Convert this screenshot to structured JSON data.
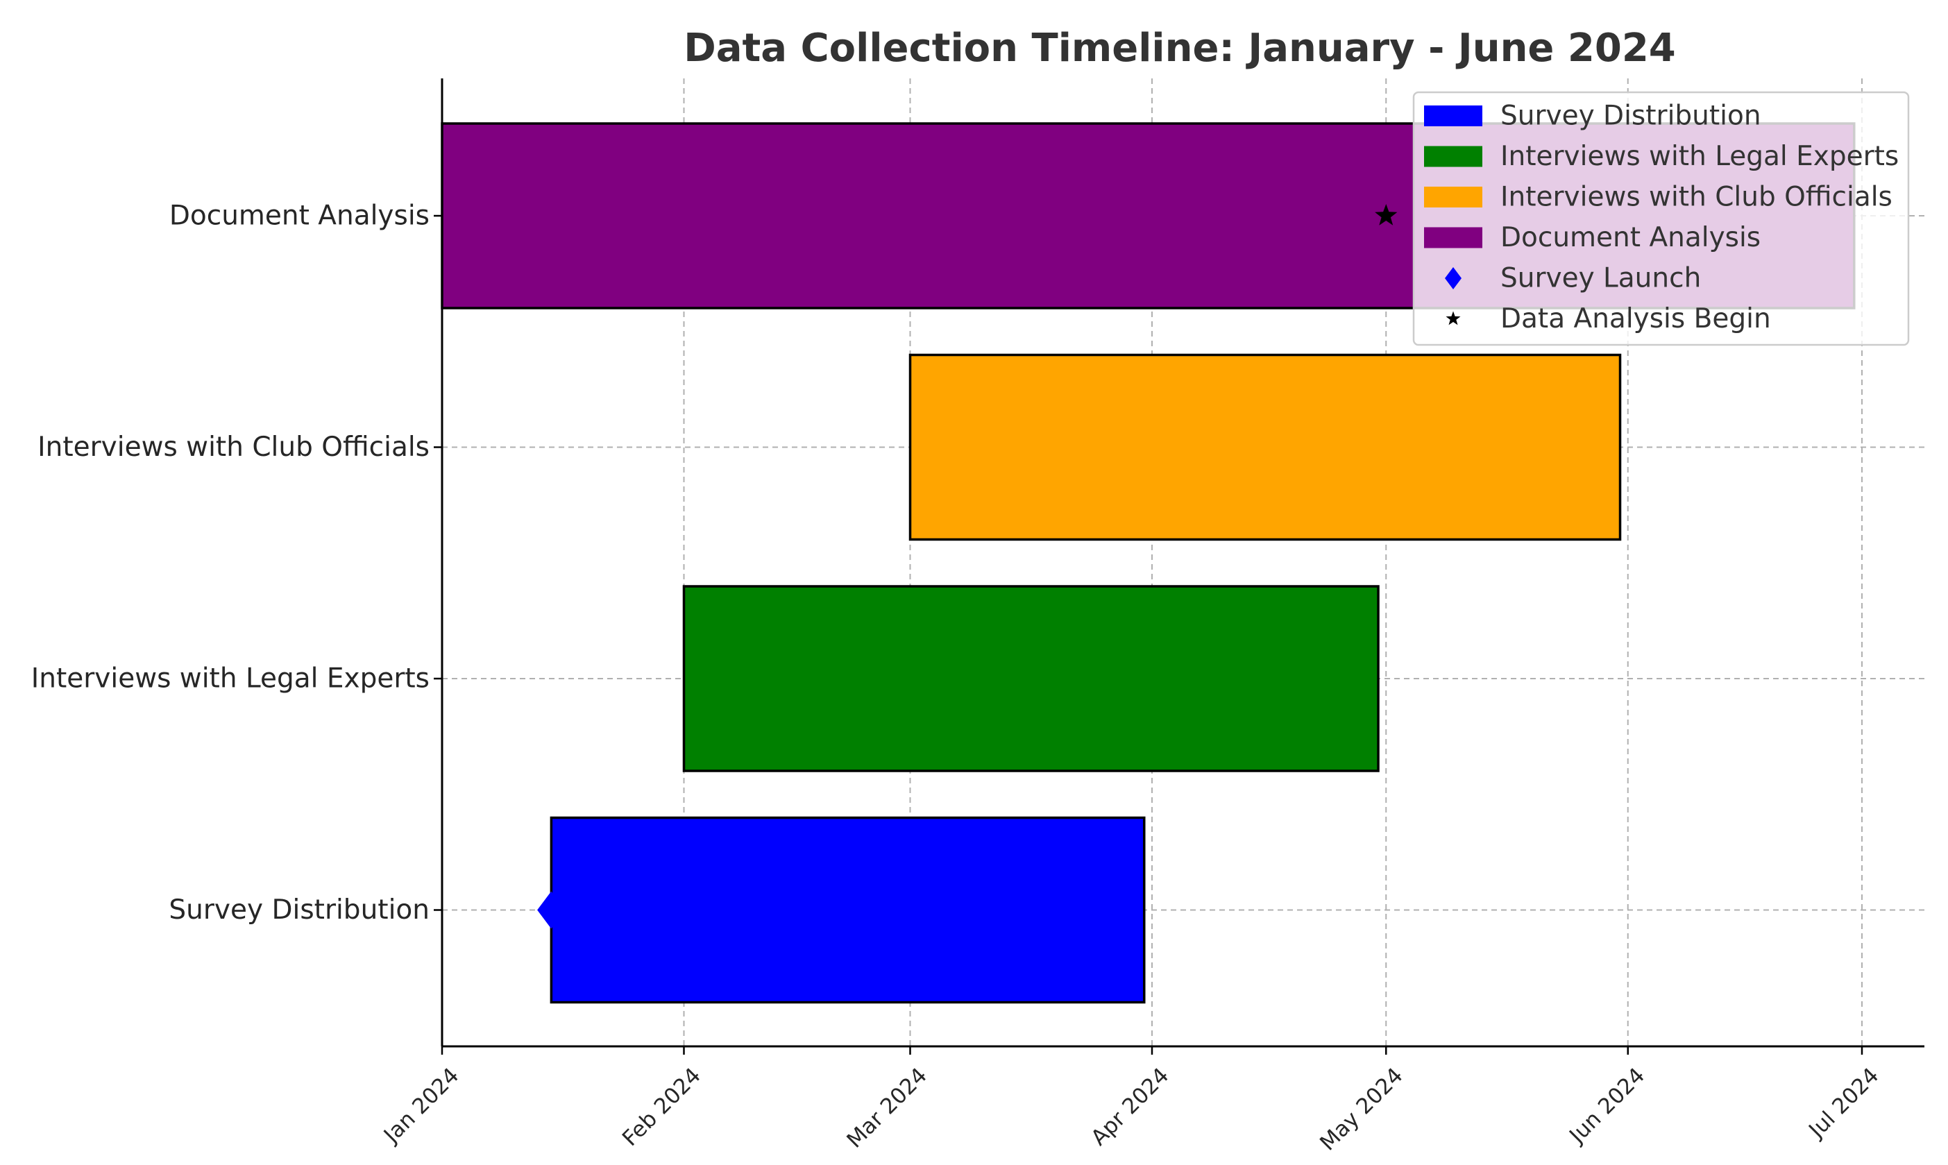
{
  "chart_data": {
    "type": "gantt",
    "title": "Data Collection Timeline: January - June 2024",
    "xlabel": "",
    "ylabel": "",
    "x_axis": {
      "type": "date",
      "range": [
        "2024-01-01",
        "2024-07-01"
      ],
      "ticks": [
        {
          "date": "2024-01-01",
          "label": "Jan 2024"
        },
        {
          "date": "2024-02-01",
          "label": "Feb 2024"
        },
        {
          "date": "2024-03-01",
          "label": "Mar 2024"
        },
        {
          "date": "2024-04-01",
          "label": "Apr 2024"
        },
        {
          "date": "2024-05-01",
          "label": "May 2024"
        },
        {
          "date": "2024-06-01",
          "label": "Jun 2024"
        },
        {
          "date": "2024-07-01",
          "label": "Jul 2024"
        }
      ]
    },
    "grid": true,
    "legend_position": "top-right",
    "tasks": [
      {
        "name": "Survey Distribution",
        "start": "2024-01-15",
        "end": "2024-03-31",
        "color": "#0000ff"
      },
      {
        "name": "Interviews with Legal Experts",
        "start": "2024-02-01",
        "end": "2024-04-30",
        "color": "#008000"
      },
      {
        "name": "Interviews with Club Officials",
        "start": "2024-03-01",
        "end": "2024-05-31",
        "color": "#ffa500"
      },
      {
        "name": "Document Analysis",
        "start": "2024-01-01",
        "end": "2024-06-30",
        "color": "#800080"
      }
    ],
    "milestones": [
      {
        "name": "Survey Launch",
        "date": "2024-01-15",
        "task": "Survey Distribution",
        "marker": "diamond",
        "color": "#0000ff"
      },
      {
        "name": "Data Analysis Begin",
        "date": "2024-05-01",
        "task": "Document Analysis",
        "marker": "star",
        "color": "#000000"
      }
    ],
    "legend": [
      {
        "label": "Survey Distribution",
        "kind": "patch",
        "color": "#0000ff"
      },
      {
        "label": "Interviews with Legal Experts",
        "kind": "patch",
        "color": "#008000"
      },
      {
        "label": "Interviews with Club Officials",
        "kind": "patch",
        "color": "#ffa500"
      },
      {
        "label": "Document Analysis",
        "kind": "patch",
        "color": "#800080"
      },
      {
        "label": "Survey Launch",
        "kind": "diamond",
        "color": "#0000ff"
      },
      {
        "label": "Data Analysis Begin",
        "kind": "star",
        "color": "#000000"
      }
    ]
  }
}
